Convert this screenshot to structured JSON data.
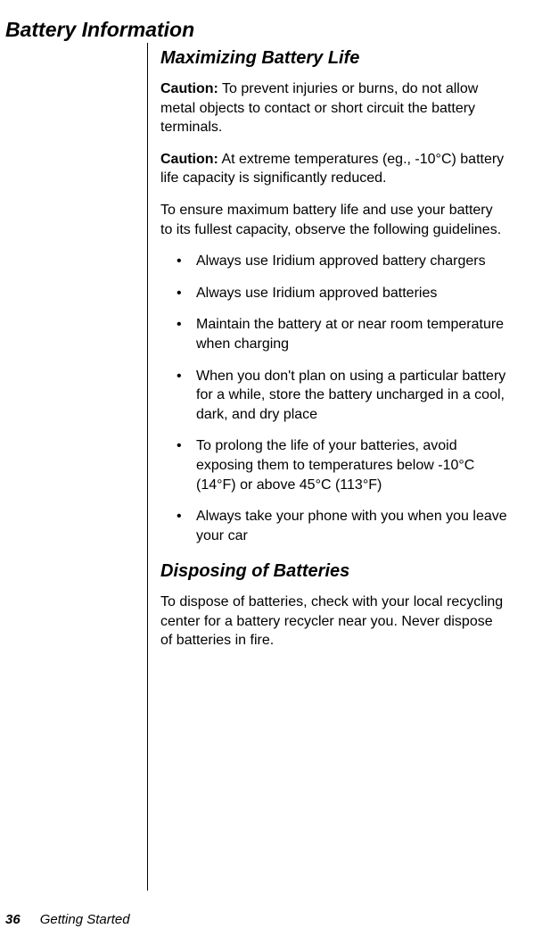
{
  "headings": {
    "main": "Battery Information",
    "sub1": "Maximizing Battery Life",
    "sub2": "Disposing of Batteries"
  },
  "cautions": {
    "label": "Caution:",
    "c1_text": " To prevent injuries or burns, do not allow metal objects to contact or short circuit the battery terminals.",
    "c2_text": " At extreme temperatures (eg., -10°C) battery life capacity is significantly reduced."
  },
  "paragraphs": {
    "intro": "To ensure maximum battery life and use your battery to its fullest capacity, observe the following guidelines.",
    "disposal": "To dispose of batteries, check with your local recycling center for a battery recycler near you. Never dispose of batteries in fire."
  },
  "bullets": {
    "b1": "Always use Iridium approved battery chargers",
    "b2": "Always use Iridium approved batteries",
    "b3": "Maintain the battery at or near room temperature when charging",
    "b4": "When you don't plan on using a particular battery for a while, store the battery uncharged in a cool, dark, and dry place",
    "b5": "To prolong the life of your batteries, avoid exposing them to temperatures below -10°C (14°F) or above 45°C (113°F)",
    "b6": "Always take your phone with you when you leave your car"
  },
  "footer": {
    "page_number": "36",
    "section_name": "Getting Started"
  }
}
